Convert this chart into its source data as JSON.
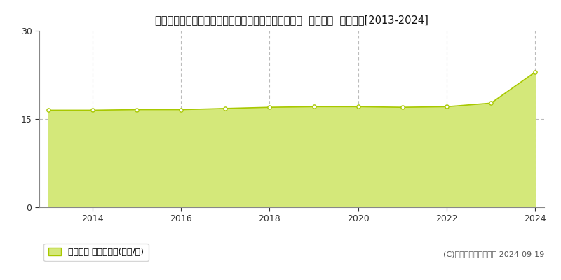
{
  "title": "東京都西多摩郡瑞穂町大字二本木字東樽ノ口４２６番  基準地価  地価推移[2013-2024]",
  "years": [
    2013,
    2014,
    2015,
    2016,
    2017,
    2018,
    2019,
    2020,
    2021,
    2022,
    2023,
    2024
  ],
  "values": [
    16.5,
    16.5,
    16.6,
    16.6,
    16.8,
    17.0,
    17.1,
    17.1,
    17.0,
    17.1,
    17.7,
    23.0
  ],
  "line_color": "#a8c800",
  "fill_color": "#d4e87a",
  "marker_facecolor": "#ffffff",
  "marker_edgecolor": "#a8c800",
  "grid_color_v": "#bbbbbb",
  "grid_color_h": "#bbbbbb",
  "yticks": [
    0,
    15,
    30
  ],
  "xticks": [
    2014,
    2016,
    2018,
    2020,
    2022,
    2024
  ],
  "ylim": [
    0,
    30
  ],
  "xlim_min": 2012.8,
  "xlim_max": 2024.2,
  "legend_label": "基準地価 平均坪単価(万円/坪)",
  "copyright_text": "(C)土地価格ドットコム 2024-09-19",
  "bg_color": "#ffffff",
  "title_fontsize": 10.5,
  "tick_fontsize": 9,
  "legend_fontsize": 9,
  "copyright_fontsize": 8
}
